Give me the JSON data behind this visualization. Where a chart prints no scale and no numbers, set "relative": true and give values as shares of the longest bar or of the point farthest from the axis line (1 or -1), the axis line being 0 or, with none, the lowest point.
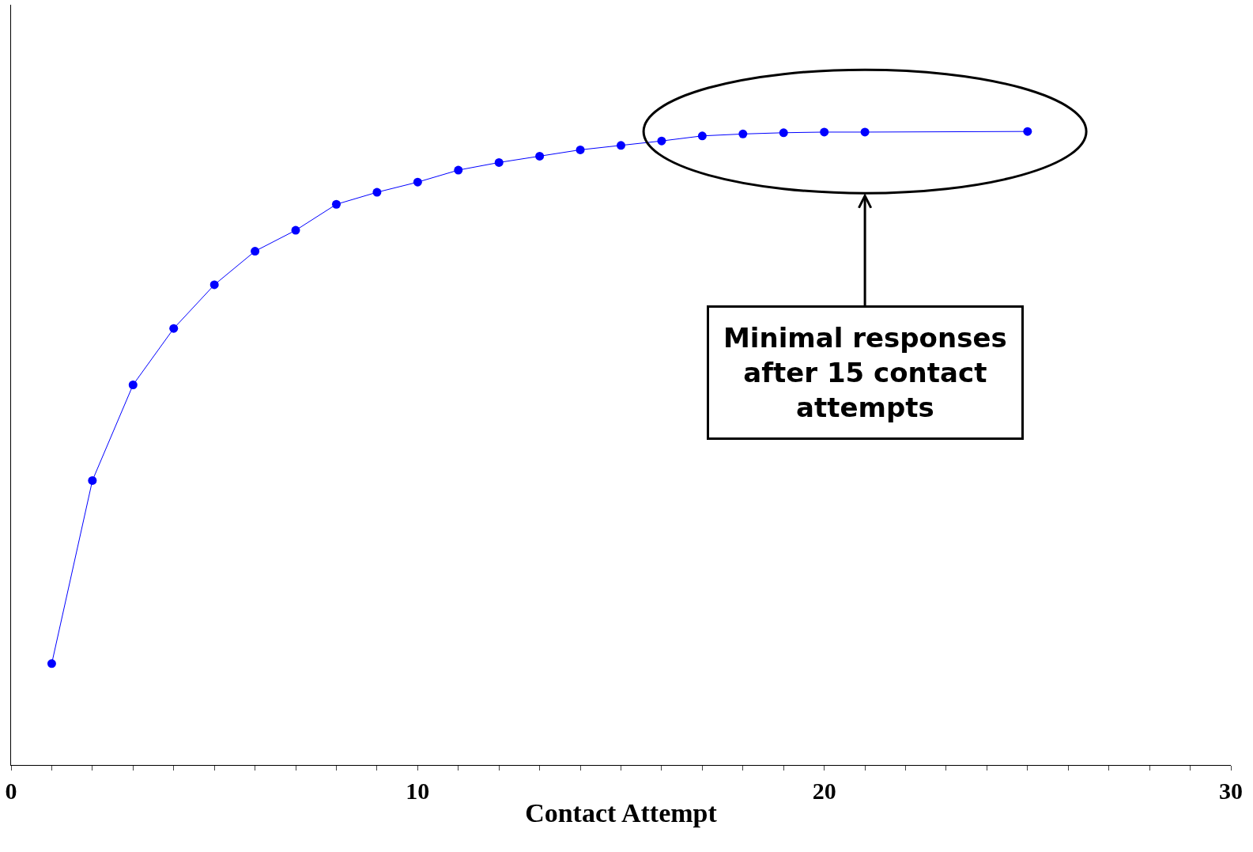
{
  "chart_data": {
    "type": "line",
    "relative": true,
    "xlabel": "Contact Attempt",
    "x": [
      1,
      2,
      3,
      4,
      5,
      6,
      7,
      8,
      9,
      10,
      11,
      12,
      13,
      14,
      15,
      16,
      17,
      18,
      19,
      20,
      21,
      25
    ],
    "series": [
      {
        "color": "#0000ff",
        "values": [
          0.16,
          0.449,
          0.6,
          0.689,
          0.758,
          0.811,
          0.844,
          0.885,
          0.904,
          0.92,
          0.939,
          0.951,
          0.961,
          0.971,
          0.978,
          0.985,
          0.993,
          0.996,
          0.998,
          0.999,
          0.999,
          1
        ]
      }
    ],
    "xlim": [
      0,
      30
    ],
    "xticks": [
      0,
      {
        "value": 1,
        "label": null
      },
      {
        "value": 2,
        "label": null
      },
      {
        "value": 3,
        "label": null
      },
      {
        "value": 4,
        "label": null
      },
      {
        "value": 5,
        "label": null
      },
      {
        "value": 6,
        "label": null
      },
      {
        "value": 7,
        "label": null
      },
      {
        "value": 8,
        "label": null
      },
      {
        "value": 9,
        "label": null
      },
      10,
      {
        "value": 11,
        "label": null
      },
      {
        "value": 12,
        "label": null
      },
      {
        "value": 13,
        "label": null
      },
      {
        "value": 14,
        "label": null
      },
      {
        "value": 15,
        "label": null
      },
      {
        "value": 16,
        "label": null
      },
      {
        "value": 17,
        "label": null
      },
      {
        "value": 18,
        "label": null
      },
      {
        "value": 19,
        "label": null
      },
      20,
      {
        "value": 21,
        "label": null
      },
      {
        "value": 22,
        "label": null
      },
      {
        "value": 23,
        "label": null
      },
      {
        "value": 24,
        "label": null
      },
      {
        "value": 25,
        "label": null
      },
      {
        "value": 26,
        "label": null
      },
      {
        "value": 27,
        "label": null
      },
      {
        "value": 28,
        "label": null
      },
      {
        "value": 29,
        "label": null
      },
      30
    ],
    "annotations": [
      {
        "text": "Minimal responses\nafter 15 contact\nattempts",
        "x": 21,
        "y": 1
      }
    ],
    "marker": "circle",
    "line_style": "solid"
  }
}
